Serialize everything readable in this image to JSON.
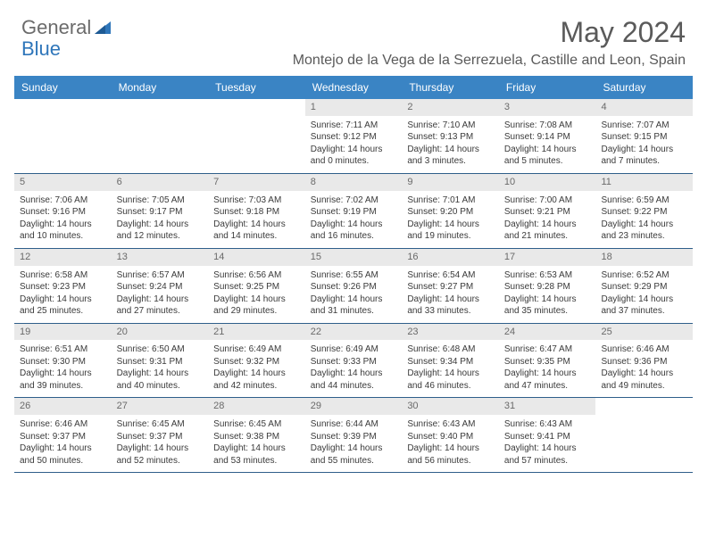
{
  "logo": {
    "general": "General",
    "blue": "Blue"
  },
  "title": "May 2024",
  "location": "Montejo de la Vega de la Serrezuela, Castille and Leon, Spain",
  "colors": {
    "header_bg": "#3a84c4",
    "header_text": "#ffffff",
    "daynum_bg": "#e9e9e9",
    "daynum_text": "#6a6a6a",
    "body_text": "#3a3a3a",
    "row_border": "#2f5f8a",
    "logo_gray": "#6b6b6b",
    "logo_blue": "#2f76ba"
  },
  "day_headers": [
    "Sunday",
    "Monday",
    "Tuesday",
    "Wednesday",
    "Thursday",
    "Friday",
    "Saturday"
  ],
  "weeks": [
    [
      null,
      null,
      null,
      {
        "n": "1",
        "sunrise": "7:11 AM",
        "sunset": "9:12 PM",
        "daylight": "14 hours and 0 minutes."
      },
      {
        "n": "2",
        "sunrise": "7:10 AM",
        "sunset": "9:13 PM",
        "daylight": "14 hours and 3 minutes."
      },
      {
        "n": "3",
        "sunrise": "7:08 AM",
        "sunset": "9:14 PM",
        "daylight": "14 hours and 5 minutes."
      },
      {
        "n": "4",
        "sunrise": "7:07 AM",
        "sunset": "9:15 PM",
        "daylight": "14 hours and 7 minutes."
      }
    ],
    [
      {
        "n": "5",
        "sunrise": "7:06 AM",
        "sunset": "9:16 PM",
        "daylight": "14 hours and 10 minutes."
      },
      {
        "n": "6",
        "sunrise": "7:05 AM",
        "sunset": "9:17 PM",
        "daylight": "14 hours and 12 minutes."
      },
      {
        "n": "7",
        "sunrise": "7:03 AM",
        "sunset": "9:18 PM",
        "daylight": "14 hours and 14 minutes."
      },
      {
        "n": "8",
        "sunrise": "7:02 AM",
        "sunset": "9:19 PM",
        "daylight": "14 hours and 16 minutes."
      },
      {
        "n": "9",
        "sunrise": "7:01 AM",
        "sunset": "9:20 PM",
        "daylight": "14 hours and 19 minutes."
      },
      {
        "n": "10",
        "sunrise": "7:00 AM",
        "sunset": "9:21 PM",
        "daylight": "14 hours and 21 minutes."
      },
      {
        "n": "11",
        "sunrise": "6:59 AM",
        "sunset": "9:22 PM",
        "daylight": "14 hours and 23 minutes."
      }
    ],
    [
      {
        "n": "12",
        "sunrise": "6:58 AM",
        "sunset": "9:23 PM",
        "daylight": "14 hours and 25 minutes."
      },
      {
        "n": "13",
        "sunrise": "6:57 AM",
        "sunset": "9:24 PM",
        "daylight": "14 hours and 27 minutes."
      },
      {
        "n": "14",
        "sunrise": "6:56 AM",
        "sunset": "9:25 PM",
        "daylight": "14 hours and 29 minutes."
      },
      {
        "n": "15",
        "sunrise": "6:55 AM",
        "sunset": "9:26 PM",
        "daylight": "14 hours and 31 minutes."
      },
      {
        "n": "16",
        "sunrise": "6:54 AM",
        "sunset": "9:27 PM",
        "daylight": "14 hours and 33 minutes."
      },
      {
        "n": "17",
        "sunrise": "6:53 AM",
        "sunset": "9:28 PM",
        "daylight": "14 hours and 35 minutes."
      },
      {
        "n": "18",
        "sunrise": "6:52 AM",
        "sunset": "9:29 PM",
        "daylight": "14 hours and 37 minutes."
      }
    ],
    [
      {
        "n": "19",
        "sunrise": "6:51 AM",
        "sunset": "9:30 PM",
        "daylight": "14 hours and 39 minutes."
      },
      {
        "n": "20",
        "sunrise": "6:50 AM",
        "sunset": "9:31 PM",
        "daylight": "14 hours and 40 minutes."
      },
      {
        "n": "21",
        "sunrise": "6:49 AM",
        "sunset": "9:32 PM",
        "daylight": "14 hours and 42 minutes."
      },
      {
        "n": "22",
        "sunrise": "6:49 AM",
        "sunset": "9:33 PM",
        "daylight": "14 hours and 44 minutes."
      },
      {
        "n": "23",
        "sunrise": "6:48 AM",
        "sunset": "9:34 PM",
        "daylight": "14 hours and 46 minutes."
      },
      {
        "n": "24",
        "sunrise": "6:47 AM",
        "sunset": "9:35 PM",
        "daylight": "14 hours and 47 minutes."
      },
      {
        "n": "25",
        "sunrise": "6:46 AM",
        "sunset": "9:36 PM",
        "daylight": "14 hours and 49 minutes."
      }
    ],
    [
      {
        "n": "26",
        "sunrise": "6:46 AM",
        "sunset": "9:37 PM",
        "daylight": "14 hours and 50 minutes."
      },
      {
        "n": "27",
        "sunrise": "6:45 AM",
        "sunset": "9:37 PM",
        "daylight": "14 hours and 52 minutes."
      },
      {
        "n": "28",
        "sunrise": "6:45 AM",
        "sunset": "9:38 PM",
        "daylight": "14 hours and 53 minutes."
      },
      {
        "n": "29",
        "sunrise": "6:44 AM",
        "sunset": "9:39 PM",
        "daylight": "14 hours and 55 minutes."
      },
      {
        "n": "30",
        "sunrise": "6:43 AM",
        "sunset": "9:40 PM",
        "daylight": "14 hours and 56 minutes."
      },
      {
        "n": "31",
        "sunrise": "6:43 AM",
        "sunset": "9:41 PM",
        "daylight": "14 hours and 57 minutes."
      },
      null
    ]
  ],
  "labels": {
    "sunrise": "Sunrise:",
    "sunset": "Sunset:",
    "daylight": "Daylight:"
  }
}
